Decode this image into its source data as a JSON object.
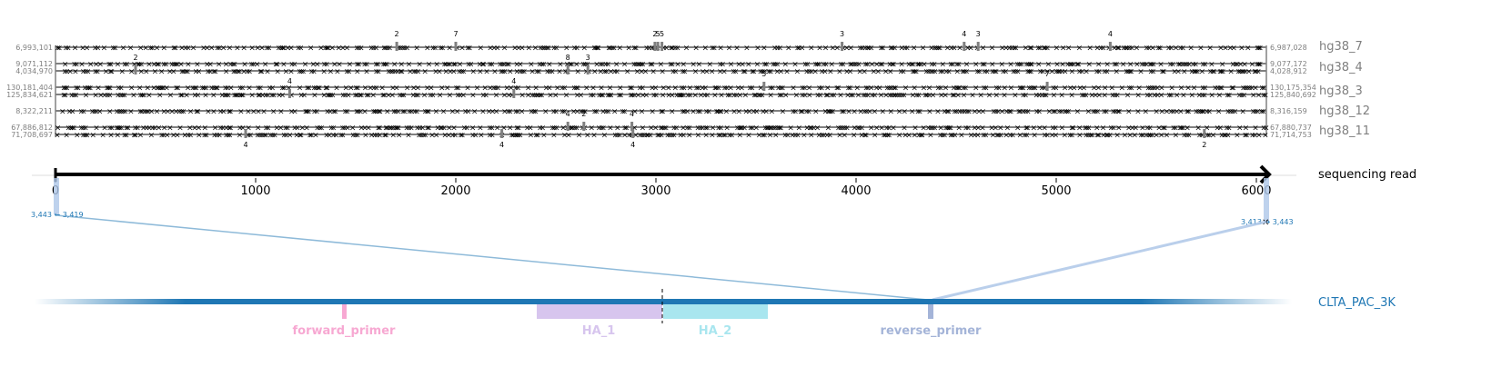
{
  "chart_data": {
    "type": "diagram",
    "read": {
      "label": "sequencing read",
      "x_ticks": [
        "0",
        "1000",
        "2000",
        "3000",
        "4000",
        "5000",
        "6000"
      ],
      "x_tick_values": [
        0,
        1000,
        2000,
        3000,
        4000,
        5000,
        6000
      ],
      "length": 6050
    },
    "alignments": [
      {
        "chrom": "hg38_7",
        "start_label": "6,993,101",
        "end_label": "6,987,028"
      },
      {
        "chrom": "hg38_4",
        "start_label": "9,071,112",
        "end_label": "9,077,172"
      },
      {
        "chrom": "hg38_4",
        "start_label": "4,034,970",
        "end_label": "4,028,912"
      },
      {
        "chrom": "hg38_3",
        "start_label": "130,181,404",
        "end_label": "130,175,354"
      },
      {
        "chrom": "hg38_3",
        "start_label": "125,834,621",
        "end_label": "125,840,692"
      },
      {
        "chrom": "hg38_12",
        "start_label": "8,322,211",
        "end_label": "8,316,159"
      },
      {
        "chrom": "hg38_11",
        "start_label": "67,886,812",
        "end_label": "67,880,737"
      },
      {
        "chrom": "hg38_11",
        "start_label": "71,708,697",
        "end_label": "71,714,753"
      }
    ],
    "chrom_labels": [
      "hg38_7",
      "hg38_4",
      "hg38_3",
      "hg38_12",
      "hg38_11"
    ],
    "indel_labels": [
      {
        "x": 1705,
        "text": "2",
        "row": 0
      },
      {
        "x": 2000,
        "text": "7",
        "row": 0
      },
      {
        "x": 2995,
        "text": "2",
        "row": 0
      },
      {
        "x": 3010,
        "text": "5",
        "row": 0
      },
      {
        "x": 3030,
        "text": "5",
        "row": 0
      },
      {
        "x": 3930,
        "text": "3",
        "row": 0
      },
      {
        "x": 4540,
        "text": "4",
        "row": 0
      },
      {
        "x": 4610,
        "text": "3",
        "row": 0
      },
      {
        "x": 5270,
        "text": "4",
        "row": 0
      },
      {
        "x": 400,
        "text": "2",
        "row": 2
      },
      {
        "x": 2560,
        "text": "8",
        "row": 2
      },
      {
        "x": 2660,
        "text": "3",
        "row": 2
      },
      {
        "x": 3540,
        "text": "5",
        "row": 3
      },
      {
        "x": 4955,
        "text": "7",
        "row": 3
      },
      {
        "x": 1170,
        "text": "4",
        "row": 4
      },
      {
        "x": 2290,
        "text": "4",
        "row": 4
      },
      {
        "x": 2880,
        "text": "4",
        "row": 6
      },
      {
        "x": 2560,
        "text": "4",
        "row": 6
      },
      {
        "x": 2640,
        "text": "2",
        "row": 6
      },
      {
        "x": 950,
        "text": "4",
        "row": 7
      },
      {
        "x": 2230,
        "text": "4",
        "row": 7
      },
      {
        "x": 2885,
        "text": "4",
        "row": 7
      },
      {
        "x": 5740,
        "text": "2",
        "row": 7
      }
    ],
    "junctions": [
      {
        "label": "3,443 ← 3,419",
        "read_pos": 0
      },
      {
        "label": "3,413 → 3,443",
        "read_pos": 6040
      }
    ],
    "reference": {
      "label": "CLTA_PAC_3K",
      "features": [
        {
          "name": "forward_primer",
          "color": "#f7a8d2"
        },
        {
          "name": "HA_1",
          "color": "#d7c5ee"
        },
        {
          "name": "HA_2",
          "color": "#a9e6ef"
        },
        {
          "name": "reverse_primer",
          "color": "#a4b4d8"
        }
      ]
    },
    "colors": {
      "read": "#000000",
      "reference": "#1f77b4",
      "chrom_label": "#7f7f7f",
      "junction_label": "#1f77b4",
      "mismatch": "#000000"
    }
  }
}
